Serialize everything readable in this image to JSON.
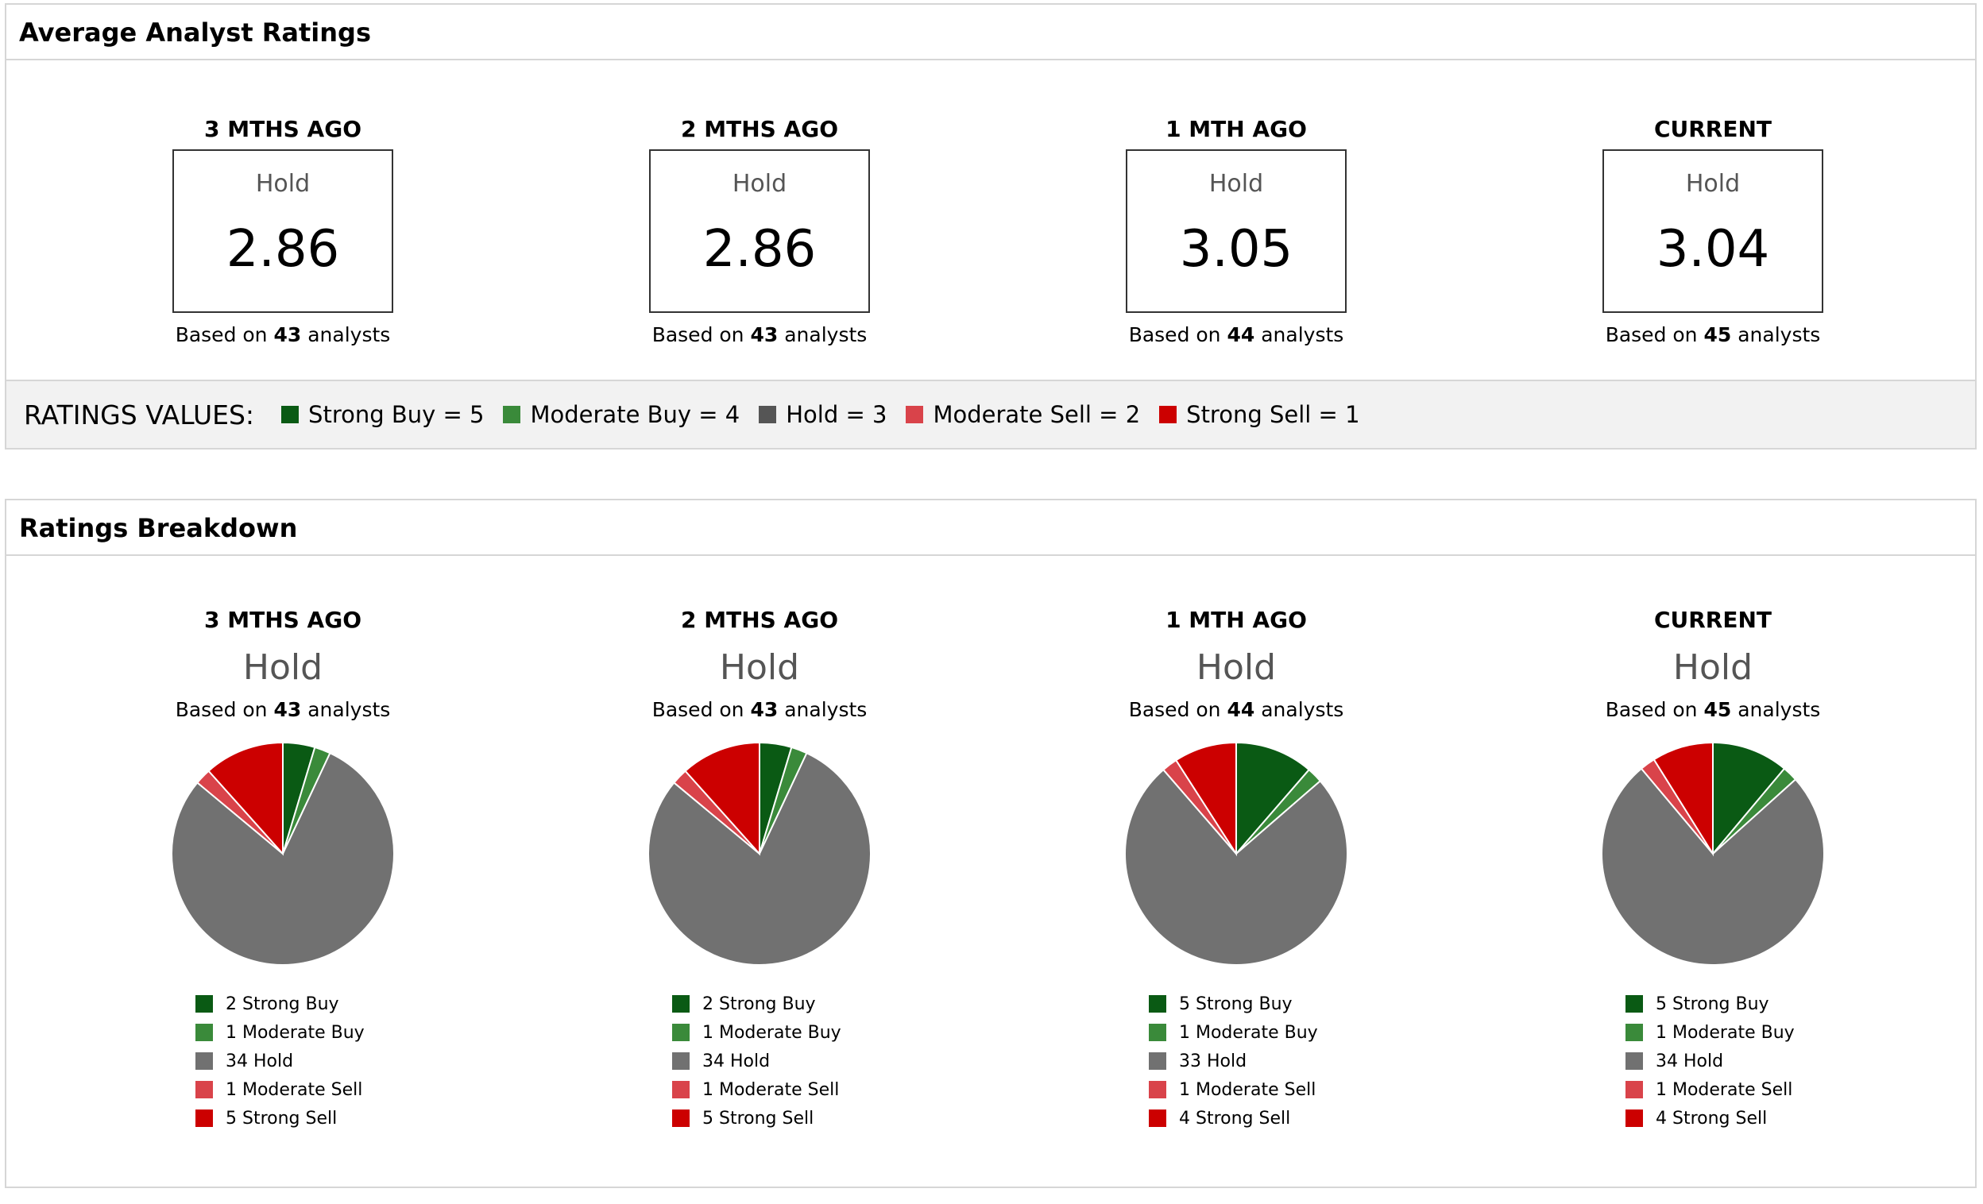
{
  "avg_panel": {
    "title": "Average Analyst Ratings",
    "periods": [
      {
        "label": "3 MTHS AGO",
        "rating": "Hold",
        "value": "2.86",
        "based_prefix": "Based on",
        "analysts": "43",
        "based_suffix": "analysts"
      },
      {
        "label": "2 MTHS AGO",
        "rating": "Hold",
        "value": "2.86",
        "based_prefix": "Based on",
        "analysts": "43",
        "based_suffix": "analysts"
      },
      {
        "label": "1 MTH AGO",
        "rating": "Hold",
        "value": "3.05",
        "based_prefix": "Based on",
        "analysts": "44",
        "based_suffix": "analysts"
      },
      {
        "label": "CURRENT",
        "rating": "Hold",
        "value": "3.04",
        "based_prefix": "Based on",
        "analysts": "45",
        "based_suffix": "analysts"
      }
    ],
    "legend": {
      "title": "RATINGS VALUES:",
      "items": [
        {
          "label": "Strong Buy = 5",
          "color": "#0a5a14"
        },
        {
          "label": "Moderate Buy = 4",
          "color": "#3a8a3a"
        },
        {
          "label": "Hold = 3",
          "color": "#555555"
        },
        {
          "label": "Moderate Sell = 2",
          "color": "#d9434a"
        },
        {
          "label": "Strong Sell = 1",
          "color": "#cc0000"
        }
      ]
    }
  },
  "breakdown_panel": {
    "title": "Ratings Breakdown",
    "periods": [
      {
        "label": "3 MTHS AGO",
        "rating": "Hold",
        "based_prefix": "Based on",
        "analysts": "43",
        "based_suffix": "analysts",
        "legend": [
          "2 Strong Buy",
          "1 Moderate Buy",
          "34 Hold",
          "1 Moderate Sell",
          "5 Strong Sell"
        ]
      },
      {
        "label": "2 MTHS AGO",
        "rating": "Hold",
        "based_prefix": "Based on",
        "analysts": "43",
        "based_suffix": "analysts",
        "legend": [
          "2 Strong Buy",
          "1 Moderate Buy",
          "34 Hold",
          "1 Moderate Sell",
          "5 Strong Sell"
        ]
      },
      {
        "label": "1 MTH AGO",
        "rating": "Hold",
        "based_prefix": "Based on",
        "analysts": "44",
        "based_suffix": "analysts",
        "legend": [
          "5 Strong Buy",
          "1 Moderate Buy",
          "33 Hold",
          "1 Moderate Sell",
          "4 Strong Sell"
        ]
      },
      {
        "label": "CURRENT",
        "rating": "Hold",
        "based_prefix": "Based on",
        "analysts": "45",
        "based_suffix": "analysts",
        "legend": [
          "5 Strong Buy",
          "1 Moderate Buy",
          "34 Hold",
          "1 Moderate Sell",
          "4 Strong Sell"
        ]
      }
    ]
  },
  "chart_data": [
    {
      "type": "pie",
      "title": "3 MTHS AGO",
      "categories": [
        "Strong Buy",
        "Moderate Buy",
        "Hold",
        "Moderate Sell",
        "Strong Sell"
      ],
      "values": [
        2,
        1,
        34,
        1,
        5
      ],
      "colors": [
        "#0a5a14",
        "#3a8a3a",
        "#717171",
        "#d9434a",
        "#cc0000"
      ]
    },
    {
      "type": "pie",
      "title": "2 MTHS AGO",
      "categories": [
        "Strong Buy",
        "Moderate Buy",
        "Hold",
        "Moderate Sell",
        "Strong Sell"
      ],
      "values": [
        2,
        1,
        34,
        1,
        5
      ],
      "colors": [
        "#0a5a14",
        "#3a8a3a",
        "#717171",
        "#d9434a",
        "#cc0000"
      ]
    },
    {
      "type": "pie",
      "title": "1 MTH AGO",
      "categories": [
        "Strong Buy",
        "Moderate Buy",
        "Hold",
        "Moderate Sell",
        "Strong Sell"
      ],
      "values": [
        5,
        1,
        33,
        1,
        4
      ],
      "colors": [
        "#0a5a14",
        "#3a8a3a",
        "#717171",
        "#d9434a",
        "#cc0000"
      ]
    },
    {
      "type": "pie",
      "title": "CURRENT",
      "categories": [
        "Strong Buy",
        "Moderate Buy",
        "Hold",
        "Moderate Sell",
        "Strong Sell"
      ],
      "values": [
        5,
        1,
        34,
        1,
        4
      ],
      "colors": [
        "#0a5a14",
        "#3a8a3a",
        "#717171",
        "#d9434a",
        "#cc0000"
      ]
    }
  ]
}
